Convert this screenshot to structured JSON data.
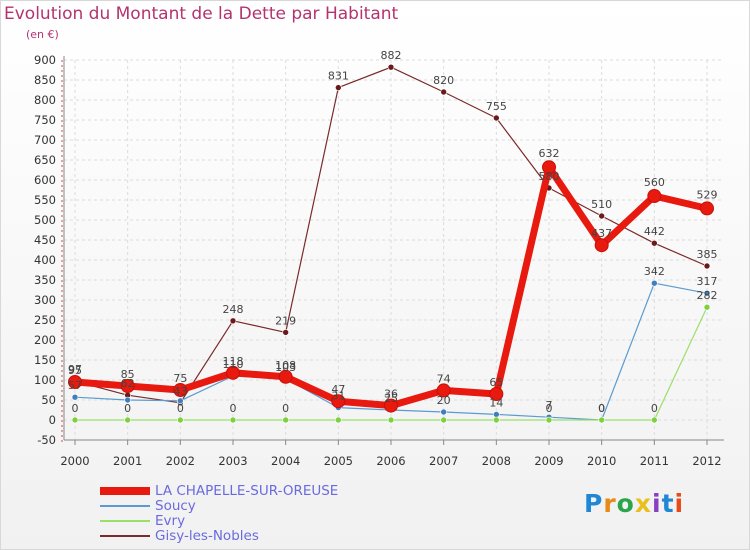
{
  "title": "Evolution du Montant de la Dette par Habitant",
  "subtitle": "(en €)",
  "logo": {
    "text": "Proxiti",
    "colors": [
      "#1f87d6",
      "#e88a1a",
      "#2aa54a",
      "#e8c020",
      "#8a3fc0",
      "#1f87d6",
      "#e84a1a"
    ]
  },
  "chart_data": {
    "type": "line",
    "title": "Evolution du Montant de la Dette par Habitant",
    "ylabel": "(en €)",
    "xlabel": "",
    "ylim": [
      -50,
      900
    ],
    "yticks": [
      -50,
      0,
      50,
      100,
      150,
      200,
      250,
      300,
      350,
      400,
      450,
      500,
      550,
      600,
      650,
      700,
      750,
      800,
      850,
      900
    ],
    "categories": [
      "2000",
      "2001",
      "2002",
      "2003",
      "2004",
      "2005",
      "2006",
      "2007",
      "2008",
      "2009",
      "2010",
      "2011",
      "2012"
    ],
    "grid": true,
    "legend_position": "bottom-left",
    "series": [
      {
        "name": "LA CHAPELLE-SUR-OREUSE",
        "color": "#e8190f",
        "marker": "#e8190f",
        "width": 7,
        "markerR": 6.5,
        "values": [
          95,
          85,
          75,
          118,
          108,
          47,
          36,
          74,
          65,
          632,
          437,
          560,
          529
        ],
        "labels": [
          "95",
          "85",
          "75",
          "118",
          "108",
          "47",
          "36",
          "74",
          "65",
          "632",
          "437",
          "560",
          "529"
        ],
        "loff": [
          [
            0,
            -12
          ],
          [
            0,
            -12
          ],
          [
            0,
            -12
          ],
          [
            0,
            -12
          ],
          [
            0,
            -12
          ],
          [
            0,
            -12
          ],
          [
            0,
            -12
          ],
          [
            0,
            -12
          ],
          [
            0,
            -12
          ],
          [
            0,
            -14
          ],
          [
            0,
            -12
          ],
          [
            0,
            -14
          ],
          [
            0,
            -14
          ]
        ]
      },
      {
        "name": "Soucy",
        "color": "#5b9bd0",
        "marker": "#3f7fc0",
        "width": 1.2,
        "markerR": 3,
        "values": [
          57,
          50,
          48,
          110,
          103,
          31,
          25,
          20,
          14,
          7,
          0,
          342,
          317
        ],
        "labels": [
          "57",
          "",
          "",
          "110",
          "103",
          "31",
          "25",
          "20",
          "14",
          "7",
          "0",
          "342",
          "317"
        ],
        "loff": [
          [
            0,
            -12
          ],
          [
            0,
            -12
          ],
          [
            0,
            -12
          ],
          [
            0,
            -12
          ],
          [
            0,
            -12
          ],
          [
            0,
            -12
          ],
          [
            0,
            -12
          ],
          [
            0,
            -12
          ],
          [
            0,
            -12
          ],
          [
            0,
            -12
          ],
          [
            0,
            -12
          ],
          [
            0,
            -12
          ],
          [
            0,
            -12
          ]
        ]
      },
      {
        "name": "Evry",
        "color": "#9adf6a",
        "marker": "#7fcf3f",
        "width": 1.2,
        "markerR": 3,
        "values": [
          0,
          0,
          0,
          0,
          0,
          0,
          0,
          0,
          0,
          0,
          0,
          0,
          282
        ],
        "labels": [
          "0",
          "0",
          "0",
          "0",
          "0",
          "",
          "",
          "",
          "",
          "0",
          "0",
          "0",
          "282"
        ],
        "loff": [
          [
            0,
            -12
          ],
          [
            0,
            -12
          ],
          [
            0,
            -12
          ],
          [
            0,
            -12
          ],
          [
            0,
            -12
          ],
          [
            0,
            -12
          ],
          [
            0,
            -12
          ],
          [
            0,
            -12
          ],
          [
            0,
            -12
          ],
          [
            0,
            -12
          ],
          [
            0,
            -12
          ],
          [
            0,
            -12
          ],
          [
            0,
            -12
          ]
        ]
      },
      {
        "name": "Gisy-les-Nobles",
        "color": "#7a2a2a",
        "marker": "#6a1a1a",
        "width": 1.2,
        "markerR": 3,
        "values": [
          97,
          62,
          43,
          248,
          219,
          831,
          882,
          820,
          755,
          580,
          510,
          442,
          385
        ],
        "labels": [
          "97",
          "62",
          "43",
          "248",
          "219",
          "831",
          "882",
          "820",
          "755",
          "580",
          "510",
          "442",
          "385"
        ],
        "loff": [
          [
            0,
            -12
          ],
          [
            0,
            -12
          ],
          [
            0,
            -12
          ],
          [
            0,
            -12
          ],
          [
            0,
            -12
          ],
          [
            0,
            -12
          ],
          [
            0,
            -12
          ],
          [
            0,
            -12
          ],
          [
            0,
            -12
          ],
          [
            0,
            -12
          ],
          [
            0,
            -12
          ],
          [
            0,
            -12
          ],
          [
            0,
            -12
          ]
        ]
      }
    ]
  }
}
